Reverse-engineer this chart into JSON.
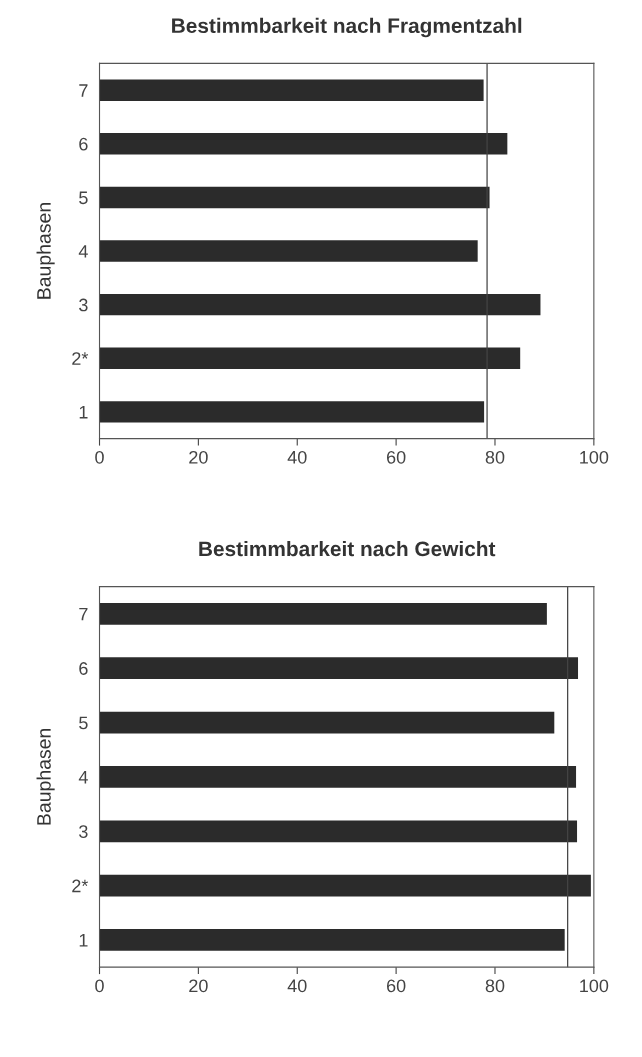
{
  "chart_data": [
    {
      "type": "bar",
      "orientation": "horizontal",
      "title": "Bestimmbarkeit nach Fragmentzahl",
      "ylabel": "Bauphasen",
      "categories": [
        "7",
        "6",
        "5",
        "4",
        "3",
        "2*",
        "1"
      ],
      "values": [
        77.7,
        82.5,
        78.9,
        76.5,
        89.2,
        85.1,
        77.8
      ],
      "color": "#2b2b2b",
      "xlim": [
        0,
        100
      ],
      "xticks": [
        0,
        20,
        40,
        60,
        80,
        100
      ],
      "grid": false,
      "legend": false,
      "ref_lines": [
        {
          "axis": "x",
          "value": 78.4,
          "color": "#444444"
        }
      ]
    },
    {
      "type": "bar",
      "orientation": "horizontal",
      "title": "Bestimmbarkeit nach Gewicht",
      "ylabel": "Bauphasen",
      "categories": [
        "7",
        "6",
        "5",
        "4",
        "3",
        "2*",
        "1"
      ],
      "values": [
        90.5,
        96.8,
        92.0,
        96.4,
        96.6,
        99.4,
        94.1
      ],
      "color": "#2b2b2b",
      "xlim": [
        0,
        100
      ],
      "xticks": [
        0,
        20,
        40,
        60,
        80,
        100
      ],
      "grid": false,
      "legend": false,
      "ref_lines": [
        {
          "axis": "x",
          "value": 94.7,
          "color": "#444444"
        }
      ]
    }
  ]
}
